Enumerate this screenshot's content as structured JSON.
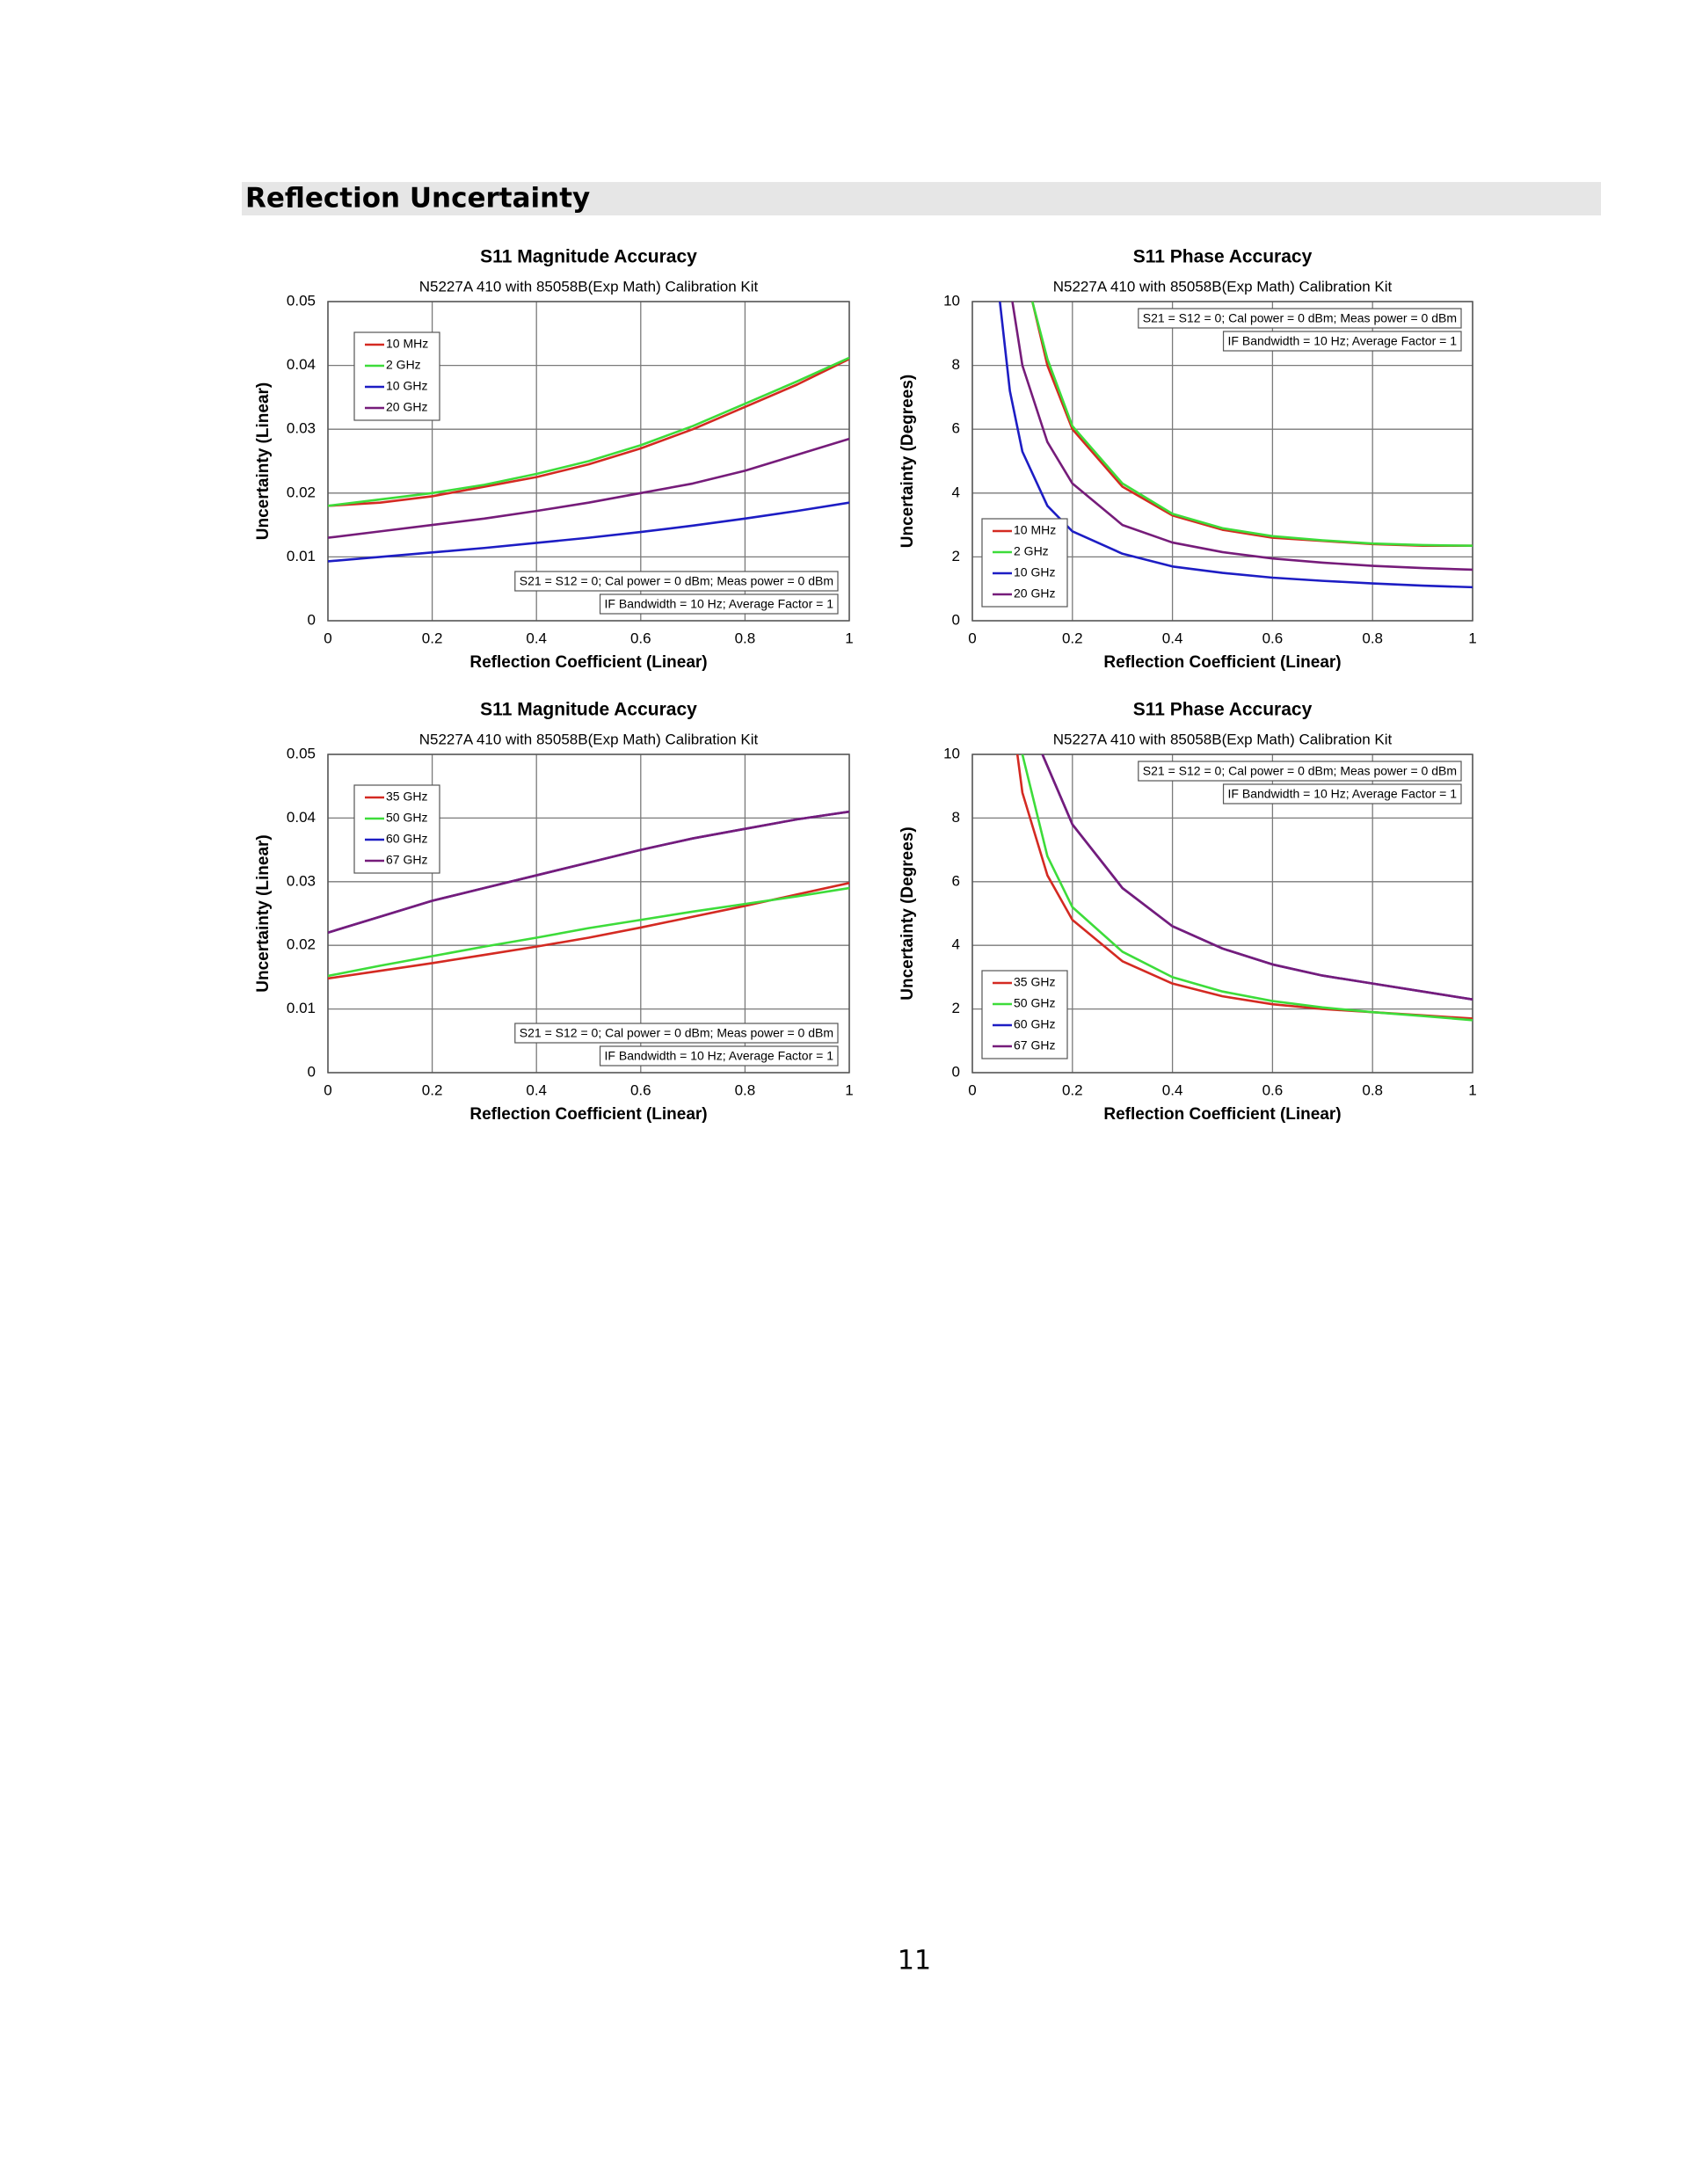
{
  "header": {
    "title": "Reflection Uncertainty"
  },
  "page_number": "11",
  "chart_data": [
    {
      "type": "line",
      "title": "S11 Magnitude Accuracy",
      "subtitle": "N5227A 410 with 85058B(Exp Math) Calibration Kit",
      "x_label": "Reflection Coefficient (Linear)",
      "y_label": "Uncertainty (Linear)",
      "annotations": [
        "S21 = S12 = 0; Cal power = 0 dBm; Meas power = 0 dBm",
        "IF Bandwidth = 10 Hz; Average Factor = 1"
      ],
      "annotation_corner": "lower right",
      "legend": "upper left",
      "grid": true,
      "xlim": [
        0,
        1
      ],
      "xticks": [
        0,
        0.2,
        0.4,
        0.6,
        0.8,
        1
      ],
      "ylim": [
        0,
        0.05
      ],
      "yticks": [
        0,
        0.01,
        0.02,
        0.03,
        0.04,
        0.05
      ],
      "x": [
        0,
        0.1,
        0.2,
        0.3,
        0.4,
        0.5,
        0.6,
        0.7,
        0.8,
        0.9,
        1
      ],
      "series": [
        {
          "name": "10 MHz",
          "color": "#d42a22",
          "values": [
            0.018,
            0.0185,
            0.0195,
            0.021,
            0.0225,
            0.0245,
            0.027,
            0.03,
            0.0335,
            0.037,
            0.041
          ]
        },
        {
          "name": "2 GHz",
          "color": "#3ddc3a",
          "values": [
            0.018,
            0.019,
            0.02,
            0.0213,
            0.023,
            0.025,
            0.0275,
            0.0305,
            0.034,
            0.0375,
            0.0412
          ]
        },
        {
          "name": "10 GHz",
          "color": "#1d1dc4",
          "values": [
            0.0093,
            0.01,
            0.0107,
            0.0114,
            0.0122,
            0.013,
            0.0139,
            0.0149,
            0.016,
            0.0172,
            0.0185
          ]
        },
        {
          "name": "20 GHz",
          "color": "#761c7a",
          "values": [
            0.013,
            0.014,
            0.015,
            0.016,
            0.0172,
            0.0185,
            0.02,
            0.0215,
            0.0235,
            0.026,
            0.0285
          ]
        }
      ]
    },
    {
      "type": "line",
      "title": "S11 Phase Accuracy",
      "subtitle": "N5227A 410 with 85058B(Exp Math) Calibration Kit",
      "x_label": "Reflection Coefficient (Linear)",
      "y_label": "Uncertainty (Degrees)",
      "annotations": [
        "S21 = S12 = 0; Cal power = 0 dBm; Meas power = 0 dBm",
        "IF Bandwidth = 10 Hz; Average Factor = 1"
      ],
      "annotation_corner": "upper right",
      "legend": "lower left",
      "grid": true,
      "xlim": [
        0,
        1
      ],
      "xticks": [
        0,
        0.2,
        0.4,
        0.6,
        0.8,
        1
      ],
      "ylim": [
        0,
        10
      ],
      "yticks": [
        0,
        2,
        4,
        6,
        8,
        10
      ],
      "series": [
        {
          "name": "10 MHz",
          "color": "#d42a22",
          "x": [
            0.12,
            0.15,
            0.2,
            0.3,
            0.4,
            0.5,
            0.6,
            0.7,
            0.8,
            0.9,
            1
          ],
          "values": [
            10,
            8.0,
            6.0,
            4.2,
            3.3,
            2.85,
            2.6,
            2.5,
            2.4,
            2.35,
            2.35
          ]
        },
        {
          "name": "2 GHz",
          "color": "#3ddc3a",
          "x": [
            0.12,
            0.15,
            0.2,
            0.3,
            0.4,
            0.5,
            0.6,
            0.7,
            0.8,
            0.9,
            1
          ],
          "values": [
            10,
            8.2,
            6.1,
            4.3,
            3.35,
            2.9,
            2.65,
            2.52,
            2.42,
            2.37,
            2.35
          ]
        },
        {
          "name": "10 GHz",
          "color": "#1d1dc4",
          "x": [
            0.055,
            0.075,
            0.1,
            0.15,
            0.2,
            0.3,
            0.4,
            0.5,
            0.6,
            0.7,
            0.8,
            0.9,
            1
          ],
          "values": [
            10,
            7.2,
            5.3,
            3.6,
            2.8,
            2.1,
            1.7,
            1.5,
            1.35,
            1.25,
            1.17,
            1.1,
            1.05
          ]
        },
        {
          "name": "20 GHz",
          "color": "#761c7a",
          "x": [
            0.08,
            0.1,
            0.15,
            0.2,
            0.3,
            0.4,
            0.5,
            0.6,
            0.7,
            0.8,
            0.9,
            1
          ],
          "values": [
            10,
            8.0,
            5.6,
            4.3,
            3.0,
            2.45,
            2.15,
            1.95,
            1.82,
            1.72,
            1.65,
            1.6
          ]
        }
      ]
    },
    {
      "type": "line",
      "title": "S11 Magnitude Accuracy",
      "subtitle": "N5227A 410 with 85058B(Exp Math) Calibration Kit",
      "x_label": "Reflection Coefficient (Linear)",
      "y_label": "Uncertainty (Linear)",
      "annotations": [
        "S21 = S12 = 0; Cal power = 0 dBm; Meas power = 0 dBm",
        "IF Bandwidth = 10 Hz; Average Factor = 1"
      ],
      "annotation_corner": "lower right",
      "legend": "upper left",
      "grid": true,
      "xlim": [
        0,
        1
      ],
      "xticks": [
        0,
        0.2,
        0.4,
        0.6,
        0.8,
        1
      ],
      "ylim": [
        0,
        0.05
      ],
      "yticks": [
        0,
        0.01,
        0.02,
        0.03,
        0.04,
        0.05
      ],
      "x": [
        0,
        0.1,
        0.2,
        0.3,
        0.4,
        0.5,
        0.6,
        0.7,
        0.8,
        0.9,
        1
      ],
      "series": [
        {
          "name": "35 GHz",
          "color": "#d42a22",
          "values": [
            0.0148,
            0.016,
            0.0172,
            0.0185,
            0.0198,
            0.0212,
            0.0228,
            0.0245,
            0.0262,
            0.028,
            0.0298
          ]
        },
        {
          "name": "50 GHz",
          "color": "#3ddc3a",
          "values": [
            0.0152,
            0.0168,
            0.0183,
            0.0198,
            0.0212,
            0.0227,
            0.024,
            0.0253,
            0.0265,
            0.0277,
            0.029
          ]
        },
        {
          "name": "60 GHz",
          "color": "#1d1dc4",
          "values": [
            0.022,
            0.0245,
            0.027,
            0.029,
            0.031,
            0.033,
            0.035,
            0.0368,
            0.0383,
            0.0398,
            0.041
          ]
        },
        {
          "name": "67 GHz",
          "color": "#761c7a",
          "values": [
            0.022,
            0.0245,
            0.027,
            0.029,
            0.031,
            0.033,
            0.035,
            0.0368,
            0.0383,
            0.0398,
            0.041
          ]
        }
      ]
    },
    {
      "type": "line",
      "title": "S11 Phase Accuracy",
      "subtitle": "N5227A 410 with 85058B(Exp Math) Calibration Kit",
      "x_label": "Reflection Coefficient (Linear)",
      "y_label": "Uncertainty (Degrees)",
      "annotations": [
        "S21 = S12 = 0; Cal power = 0 dBm; Meas power = 0 dBm",
        "IF Bandwidth = 10 Hz; Average Factor = 1"
      ],
      "annotation_corner": "upper right",
      "legend": "lower left",
      "grid": true,
      "xlim": [
        0,
        1
      ],
      "xticks": [
        0,
        0.2,
        0.4,
        0.6,
        0.8,
        1
      ],
      "ylim": [
        0,
        10
      ],
      "yticks": [
        0,
        2,
        4,
        6,
        8,
        10
      ],
      "series": [
        {
          "name": "35 GHz",
          "color": "#d42a22",
          "x": [
            0.09,
            0.1,
            0.15,
            0.2,
            0.3,
            0.4,
            0.5,
            0.6,
            0.7,
            0.8,
            0.9,
            1
          ],
          "values": [
            10,
            8.8,
            6.2,
            4.8,
            3.5,
            2.8,
            2.4,
            2.15,
            2.0,
            1.9,
            1.8,
            1.7
          ]
        },
        {
          "name": "50 GHz",
          "color": "#3ddc3a",
          "x": [
            0.1,
            0.15,
            0.2,
            0.3,
            0.4,
            0.5,
            0.6,
            0.7,
            0.8,
            0.9,
            1
          ],
          "values": [
            10,
            6.8,
            5.2,
            3.8,
            3.0,
            2.55,
            2.25,
            2.05,
            1.9,
            1.78,
            1.65
          ]
        },
        {
          "name": "60 GHz",
          "color": "#1d1dc4",
          "x": [
            0.14,
            0.2,
            0.3,
            0.4,
            0.5,
            0.6,
            0.7,
            0.8,
            0.9,
            1
          ],
          "values": [
            10,
            7.8,
            5.8,
            4.6,
            3.9,
            3.4,
            3.05,
            2.8,
            2.55,
            2.3
          ]
        },
        {
          "name": "67 GHz",
          "color": "#761c7a",
          "x": [
            0.14,
            0.2,
            0.3,
            0.4,
            0.5,
            0.6,
            0.7,
            0.8,
            0.9,
            1
          ],
          "values": [
            10,
            7.8,
            5.8,
            4.6,
            3.9,
            3.4,
            3.05,
            2.8,
            2.55,
            2.3
          ]
        }
      ]
    }
  ]
}
